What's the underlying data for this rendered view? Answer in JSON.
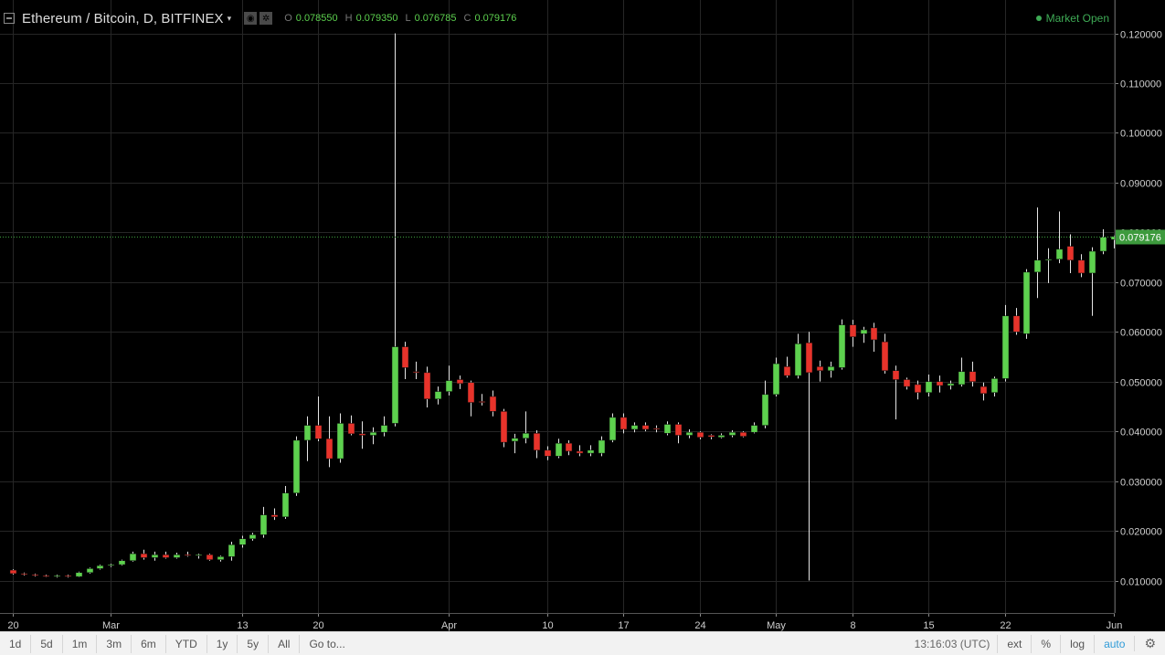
{
  "header": {
    "symbol": "Ethereum / Bitcoin, D, BITFINEX",
    "caret": "▾",
    "ohlc": [
      {
        "label": "O",
        "value": "0.078550"
      },
      {
        "label": "H",
        "value": "0.079350"
      },
      {
        "label": "L",
        "value": "0.076785"
      },
      {
        "label": "C",
        "value": "0.079176"
      }
    ],
    "market_status": "Market Open"
  },
  "colors": {
    "up": "#5dd14e",
    "down": "#e8332b",
    "grid": "#262626",
    "background": "#000000",
    "last_price": "#3fa03f"
  },
  "chart_data": {
    "type": "candlestick",
    "title": "Ethereum / Bitcoin, D, BITFINEX",
    "ylim": [
      0.0,
      0.12
    ],
    "yticks": [
      "0.010000",
      "0.020000",
      "0.030000",
      "0.040000",
      "0.050000",
      "0.060000",
      "0.070000",
      "0.080000",
      "0.090000",
      "0.100000",
      "0.110000",
      "0.120000"
    ],
    "xticks": [
      {
        "label": "20",
        "date": "2017-02-20"
      },
      {
        "label": "Mar",
        "date": "2017-03-01"
      },
      {
        "label": "13",
        "date": "2017-03-13"
      },
      {
        "label": "20",
        "date": "2017-03-20"
      },
      {
        "label": "Apr",
        "date": "2017-04-01"
      },
      {
        "label": "10",
        "date": "2017-04-10"
      },
      {
        "label": "17",
        "date": "2017-04-17"
      },
      {
        "label": "24",
        "date": "2017-04-24"
      },
      {
        "label": "May",
        "date": "2017-05-01"
      },
      {
        "label": "8",
        "date": "2017-05-08"
      },
      {
        "label": "15",
        "date": "2017-05-15"
      },
      {
        "label": "22",
        "date": "2017-05-22"
      },
      {
        "label": "Jun",
        "date": "2017-06-01"
      }
    ],
    "last_price": "0.079176",
    "grid": true,
    "candles": [
      {
        "date": "2017-02-20",
        "o": 0.0121,
        "h": 0.0123,
        "l": 0.0112,
        "c": 0.0114
      },
      {
        "date": "2017-02-21",
        "o": 0.0114,
        "h": 0.0116,
        "l": 0.011,
        "c": 0.0112
      },
      {
        "date": "2017-02-22",
        "o": 0.0112,
        "h": 0.0114,
        "l": 0.0108,
        "c": 0.011
      },
      {
        "date": "2017-02-23",
        "o": 0.011,
        "h": 0.0112,
        "l": 0.0107,
        "c": 0.0108
      },
      {
        "date": "2017-02-24",
        "o": 0.0108,
        "h": 0.0112,
        "l": 0.0106,
        "c": 0.011
      },
      {
        "date": "2017-02-25",
        "o": 0.011,
        "h": 0.0112,
        "l": 0.0106,
        "c": 0.0108
      },
      {
        "date": "2017-02-26",
        "o": 0.0108,
        "h": 0.0118,
        "l": 0.0107,
        "c": 0.0116
      },
      {
        "date": "2017-02-27",
        "o": 0.0116,
        "h": 0.0126,
        "l": 0.0114,
        "c": 0.0124
      },
      {
        "date": "2017-02-28",
        "o": 0.0124,
        "h": 0.0132,
        "l": 0.0122,
        "c": 0.013
      },
      {
        "date": "2017-03-01",
        "o": 0.013,
        "h": 0.0134,
        "l": 0.0127,
        "c": 0.0132
      },
      {
        "date": "2017-03-02",
        "o": 0.0132,
        "h": 0.0142,
        "l": 0.013,
        "c": 0.014
      },
      {
        "date": "2017-03-03",
        "o": 0.014,
        "h": 0.0158,
        "l": 0.0138,
        "c": 0.0154
      },
      {
        "date": "2017-03-04",
        "o": 0.0154,
        "h": 0.0162,
        "l": 0.0142,
        "c": 0.0146
      },
      {
        "date": "2017-03-05",
        "o": 0.0146,
        "h": 0.0158,
        "l": 0.014,
        "c": 0.0152
      },
      {
        "date": "2017-03-06",
        "o": 0.0152,
        "h": 0.0158,
        "l": 0.0144,
        "c": 0.0146
      },
      {
        "date": "2017-03-07",
        "o": 0.0146,
        "h": 0.0156,
        "l": 0.0144,
        "c": 0.0152
      },
      {
        "date": "2017-03-08",
        "o": 0.0152,
        "h": 0.0158,
        "l": 0.0148,
        "c": 0.015
      },
      {
        "date": "2017-03-09",
        "o": 0.015,
        "h": 0.0154,
        "l": 0.0144,
        "c": 0.0152
      },
      {
        "date": "2017-03-10",
        "o": 0.0152,
        "h": 0.0154,
        "l": 0.014,
        "c": 0.0142
      },
      {
        "date": "2017-03-11",
        "o": 0.0142,
        "h": 0.015,
        "l": 0.0138,
        "c": 0.0148
      },
      {
        "date": "2017-03-12",
        "o": 0.0148,
        "h": 0.0178,
        "l": 0.014,
        "c": 0.0172
      },
      {
        "date": "2017-03-13",
        "o": 0.0172,
        "h": 0.019,
        "l": 0.0166,
        "c": 0.0184
      },
      {
        "date": "2017-03-14",
        "o": 0.0184,
        "h": 0.0196,
        "l": 0.018,
        "c": 0.0192
      },
      {
        "date": "2017-03-15",
        "o": 0.0192,
        "h": 0.0248,
        "l": 0.0186,
        "c": 0.0232
      },
      {
        "date": "2017-03-16",
        "o": 0.0232,
        "h": 0.0245,
        "l": 0.0222,
        "c": 0.0228
      },
      {
        "date": "2017-03-17",
        "o": 0.0228,
        "h": 0.029,
        "l": 0.0224,
        "c": 0.0276
      },
      {
        "date": "2017-03-18",
        "o": 0.0276,
        "h": 0.039,
        "l": 0.027,
        "c": 0.0382
      },
      {
        "date": "2017-03-19",
        "o": 0.0382,
        "h": 0.043,
        "l": 0.034,
        "c": 0.0412
      },
      {
        "date": "2017-03-20",
        "o": 0.0412,
        "h": 0.047,
        "l": 0.038,
        "c": 0.0385
      },
      {
        "date": "2017-03-21",
        "o": 0.0385,
        "h": 0.043,
        "l": 0.0328,
        "c": 0.0345
      },
      {
        "date": "2017-03-22",
        "o": 0.0345,
        "h": 0.0436,
        "l": 0.0337,
        "c": 0.0416
      },
      {
        "date": "2017-03-23",
        "o": 0.0416,
        "h": 0.0432,
        "l": 0.0392,
        "c": 0.0395
      },
      {
        "date": "2017-03-24",
        "o": 0.0395,
        "h": 0.042,
        "l": 0.0365,
        "c": 0.0392
      },
      {
        "date": "2017-03-25",
        "o": 0.0392,
        "h": 0.0408,
        "l": 0.0374,
        "c": 0.0398
      },
      {
        "date": "2017-03-26",
        "o": 0.0398,
        "h": 0.043,
        "l": 0.039,
        "c": 0.0412
      },
      {
        "date": "2017-03-27",
        "o": 0.0416,
        "h": 0.12,
        "l": 0.041,
        "c": 0.057
      },
      {
        "date": "2017-03-28",
        "o": 0.057,
        "h": 0.058,
        "l": 0.0505,
        "c": 0.0528
      },
      {
        "date": "2017-03-29",
        "o": 0.052,
        "h": 0.054,
        "l": 0.0505,
        "c": 0.0518
      },
      {
        "date": "2017-03-30",
        "o": 0.0518,
        "h": 0.053,
        "l": 0.0448,
        "c": 0.0465
      },
      {
        "date": "2017-03-31",
        "o": 0.0465,
        "h": 0.049,
        "l": 0.0454,
        "c": 0.048
      },
      {
        "date": "2017-04-01",
        "o": 0.048,
        "h": 0.0532,
        "l": 0.0472,
        "c": 0.0502
      },
      {
        "date": "2017-04-02",
        "o": 0.0504,
        "h": 0.0512,
        "l": 0.0485,
        "c": 0.0496
      },
      {
        "date": "2017-04-03",
        "o": 0.0498,
        "h": 0.0502,
        "l": 0.043,
        "c": 0.0458
      },
      {
        "date": "2017-04-04",
        "o": 0.046,
        "h": 0.0475,
        "l": 0.0452,
        "c": 0.0458
      },
      {
        "date": "2017-04-05",
        "o": 0.047,
        "h": 0.0482,
        "l": 0.043,
        "c": 0.044
      },
      {
        "date": "2017-04-06",
        "o": 0.044,
        "h": 0.0445,
        "l": 0.0368,
        "c": 0.0378
      },
      {
        "date": "2017-04-07",
        "o": 0.038,
        "h": 0.0395,
        "l": 0.0356,
        "c": 0.0386
      },
      {
        "date": "2017-04-08",
        "o": 0.0386,
        "h": 0.044,
        "l": 0.0376,
        "c": 0.0396
      },
      {
        "date": "2017-04-09",
        "o": 0.0396,
        "h": 0.0402,
        "l": 0.0346,
        "c": 0.0362
      },
      {
        "date": "2017-04-10",
        "o": 0.0362,
        "h": 0.037,
        "l": 0.0342,
        "c": 0.035
      },
      {
        "date": "2017-04-11",
        "o": 0.035,
        "h": 0.0385,
        "l": 0.0346,
        "c": 0.0376
      },
      {
        "date": "2017-04-12",
        "o": 0.0376,
        "h": 0.0382,
        "l": 0.0352,
        "c": 0.036
      },
      {
        "date": "2017-04-13",
        "o": 0.036,
        "h": 0.0372,
        "l": 0.035,
        "c": 0.0356
      },
      {
        "date": "2017-04-14",
        "o": 0.0356,
        "h": 0.0372,
        "l": 0.035,
        "c": 0.0362
      },
      {
        "date": "2017-04-15",
        "o": 0.0356,
        "h": 0.039,
        "l": 0.035,
        "c": 0.0382
      },
      {
        "date": "2017-04-16",
        "o": 0.0382,
        "h": 0.0436,
        "l": 0.0378,
        "c": 0.0428
      },
      {
        "date": "2017-04-17",
        "o": 0.0428,
        "h": 0.0436,
        "l": 0.0396,
        "c": 0.0404
      },
      {
        "date": "2017-04-18",
        "o": 0.0404,
        "h": 0.0418,
        "l": 0.0398,
        "c": 0.0412
      },
      {
        "date": "2017-04-19",
        "o": 0.0412,
        "h": 0.0418,
        "l": 0.04,
        "c": 0.0404
      },
      {
        "date": "2017-04-20",
        "o": 0.0406,
        "h": 0.0412,
        "l": 0.0398,
        "c": 0.0404
      },
      {
        "date": "2017-04-21",
        "o": 0.0396,
        "h": 0.042,
        "l": 0.0392,
        "c": 0.0414
      },
      {
        "date": "2017-04-22",
        "o": 0.0414,
        "h": 0.0418,
        "l": 0.0376,
        "c": 0.0392
      },
      {
        "date": "2017-04-23",
        "o": 0.0392,
        "h": 0.0404,
        "l": 0.0386,
        "c": 0.0398
      },
      {
        "date": "2017-04-24",
        "o": 0.0398,
        "h": 0.04,
        "l": 0.0384,
        "c": 0.0388
      },
      {
        "date": "2017-04-25",
        "o": 0.0392,
        "h": 0.0394,
        "l": 0.0384,
        "c": 0.0389
      },
      {
        "date": "2017-04-26",
        "o": 0.0388,
        "h": 0.0396,
        "l": 0.0386,
        "c": 0.0392
      },
      {
        "date": "2017-04-27",
        "o": 0.0392,
        "h": 0.0402,
        "l": 0.0388,
        "c": 0.0398
      },
      {
        "date": "2017-04-28",
        "o": 0.0398,
        "h": 0.04,
        "l": 0.0388,
        "c": 0.039
      },
      {
        "date": "2017-04-29",
        "o": 0.0398,
        "h": 0.0418,
        "l": 0.0396,
        "c": 0.0412
      },
      {
        "date": "2017-04-30",
        "o": 0.0412,
        "h": 0.0502,
        "l": 0.0406,
        "c": 0.0474
      },
      {
        "date": "2017-05-01",
        "o": 0.0474,
        "h": 0.0548,
        "l": 0.047,
        "c": 0.0536
      },
      {
        "date": "2017-05-02",
        "o": 0.053,
        "h": 0.055,
        "l": 0.0508,
        "c": 0.0512
      },
      {
        "date": "2017-05-03",
        "o": 0.0512,
        "h": 0.0596,
        "l": 0.0506,
        "c": 0.0576
      },
      {
        "date": "2017-05-04",
        "o": 0.0578,
        "h": 0.06,
        "l": 0.01,
        "c": 0.0518
      },
      {
        "date": "2017-05-05",
        "o": 0.053,
        "h": 0.0542,
        "l": 0.05,
        "c": 0.0522
      },
      {
        "date": "2017-05-06",
        "o": 0.0522,
        "h": 0.054,
        "l": 0.0508,
        "c": 0.053
      },
      {
        "date": "2017-05-07",
        "o": 0.0528,
        "h": 0.0625,
        "l": 0.0524,
        "c": 0.0614
      },
      {
        "date": "2017-05-08",
        "o": 0.0614,
        "h": 0.0624,
        "l": 0.057,
        "c": 0.059
      },
      {
        "date": "2017-05-09",
        "o": 0.0596,
        "h": 0.061,
        "l": 0.0578,
        "c": 0.0604
      },
      {
        "date": "2017-05-10",
        "o": 0.0608,
        "h": 0.0618,
        "l": 0.056,
        "c": 0.0584
      },
      {
        "date": "2017-05-11",
        "o": 0.058,
        "h": 0.0596,
        "l": 0.0516,
        "c": 0.0522
      },
      {
        "date": "2017-05-12",
        "o": 0.0522,
        "h": 0.0532,
        "l": 0.0424,
        "c": 0.0504
      },
      {
        "date": "2017-05-13",
        "o": 0.0504,
        "h": 0.0508,
        "l": 0.0484,
        "c": 0.049
      },
      {
        "date": "2017-05-14",
        "o": 0.0494,
        "h": 0.0502,
        "l": 0.0464,
        "c": 0.0478
      },
      {
        "date": "2017-05-15",
        "o": 0.0478,
        "h": 0.0514,
        "l": 0.047,
        "c": 0.05
      },
      {
        "date": "2017-05-16",
        "o": 0.05,
        "h": 0.0512,
        "l": 0.0478,
        "c": 0.0492
      },
      {
        "date": "2017-05-17",
        "o": 0.0492,
        "h": 0.0502,
        "l": 0.0484,
        "c": 0.0496
      },
      {
        "date": "2017-05-18",
        "o": 0.0494,
        "h": 0.0548,
        "l": 0.049,
        "c": 0.052
      },
      {
        "date": "2017-05-19",
        "o": 0.052,
        "h": 0.054,
        "l": 0.049,
        "c": 0.05
      },
      {
        "date": "2017-05-20",
        "o": 0.049,
        "h": 0.0498,
        "l": 0.0462,
        "c": 0.0476
      },
      {
        "date": "2017-05-21",
        "o": 0.0478,
        "h": 0.051,
        "l": 0.047,
        "c": 0.0506
      },
      {
        "date": "2017-05-22",
        "o": 0.0506,
        "h": 0.0654,
        "l": 0.05,
        "c": 0.0632
      },
      {
        "date": "2017-05-23",
        "o": 0.0632,
        "h": 0.0648,
        "l": 0.0594,
        "c": 0.06
      },
      {
        "date": "2017-05-24",
        "o": 0.0596,
        "h": 0.0726,
        "l": 0.0586,
        "c": 0.072
      },
      {
        "date": "2017-05-25",
        "o": 0.072,
        "h": 0.085,
        "l": 0.0668,
        "c": 0.0744
      },
      {
        "date": "2017-05-26",
        "o": 0.0744,
        "h": 0.0768,
        "l": 0.0698,
        "c": 0.0746
      },
      {
        "date": "2017-05-27",
        "o": 0.0746,
        "h": 0.0842,
        "l": 0.0738,
        "c": 0.0766
      },
      {
        "date": "2017-05-28",
        "o": 0.0772,
        "h": 0.0796,
        "l": 0.0718,
        "c": 0.0744
      },
      {
        "date": "2017-05-29",
        "o": 0.0744,
        "h": 0.0756,
        "l": 0.071,
        "c": 0.0718
      },
      {
        "date": "2017-05-30",
        "o": 0.0718,
        "h": 0.077,
        "l": 0.0632,
        "c": 0.0762
      },
      {
        "date": "2017-05-31",
        "o": 0.0762,
        "h": 0.0806,
        "l": 0.0756,
        "c": 0.079
      },
      {
        "date": "2017-06-01",
        "o": 0.07855,
        "h": 0.07935,
        "l": 0.076785,
        "c": 0.079176
      }
    ]
  },
  "toolbar": {
    "ranges": [
      "1d",
      "5d",
      "1m",
      "3m",
      "6m",
      "YTD",
      "1y",
      "5y",
      "All"
    ],
    "goto": "Go to...",
    "time": "13:16:03 (UTC)",
    "ext": "ext",
    "percent": "%",
    "log": "log",
    "auto": "auto",
    "settings_icon": "gear-icon"
  }
}
